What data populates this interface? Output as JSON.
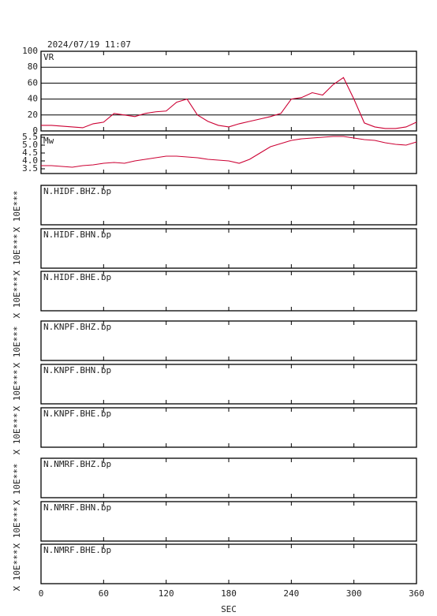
{
  "chart_data": [
    {
      "type": "line",
      "title": "2024/07/19 11:07",
      "label": "VR",
      "x": [
        0,
        10,
        20,
        30,
        40,
        50,
        60,
        70,
        80,
        90,
        100,
        110,
        120,
        130,
        140,
        150,
        160,
        170,
        180,
        190,
        200,
        210,
        220,
        230,
        240,
        250,
        260,
        270,
        280,
        290,
        300,
        310,
        320,
        330,
        340,
        350,
        360
      ],
      "values": [
        7,
        7,
        6,
        5,
        4,
        9,
        11,
        22,
        20,
        18,
        22,
        24,
        25,
        36,
        40,
        20,
        12,
        7,
        5,
        9,
        12,
        15,
        18,
        22,
        40,
        42,
        48,
        45,
        58,
        67,
        40,
        10,
        5,
        3,
        3,
        5,
        11
      ],
      "color": "#cc0033",
      "xlim": [
        0,
        360
      ],
      "xticks": [
        0,
        60,
        120,
        180,
        240,
        300,
        360
      ],
      "ylim": [
        0,
        100
      ],
      "yticks": [
        0,
        20,
        40,
        60,
        80,
        100
      ],
      "grid": true
    },
    {
      "type": "line",
      "label": "Mw",
      "x": [
        0,
        10,
        20,
        30,
        40,
        50,
        60,
        70,
        80,
        90,
        100,
        110,
        120,
        130,
        140,
        150,
        160,
        170,
        180,
        190,
        200,
        210,
        220,
        230,
        240,
        250,
        260,
        270,
        280,
        290,
        300,
        310,
        320,
        330,
        340,
        350,
        360
      ],
      "values": [
        3.7,
        3.7,
        3.65,
        3.6,
        3.7,
        3.75,
        3.85,
        3.9,
        3.85,
        4.0,
        4.1,
        4.2,
        4.3,
        4.3,
        4.25,
        4.2,
        4.1,
        4.05,
        4.0,
        3.85,
        4.1,
        4.5,
        4.9,
        5.1,
        5.3,
        5.4,
        5.45,
        5.5,
        5.55,
        5.55,
        5.45,
        5.35,
        5.3,
        5.15,
        5.05,
        5.0,
        5.2
      ],
      "color": "#cc0033",
      "xlim": [
        0,
        360
      ],
      "xticks": [
        0,
        60,
        120,
        180,
        240,
        300,
        360
      ],
      "ylim": [
        3.2,
        5.65
      ],
      "yticks": [
        3.5,
        {
          "value": 4,
          "label": "4.0"
        },
        4.5,
        {
          "value": 5,
          "label": "5.0"
        },
        5.5
      ],
      "grid": false
    },
    {
      "type": "line",
      "label": "N.HIDF.BHZ.bp",
      "ylabel": "X 10E***",
      "xlim": [
        0,
        360
      ],
      "xticks": [
        0,
        60,
        120,
        180,
        240,
        300,
        360
      ]
    },
    {
      "type": "line",
      "label": "N.HIDF.BHN.bp",
      "ylabel": "X 10E***",
      "xlim": [
        0,
        360
      ],
      "xticks": [
        0,
        60,
        120,
        180,
        240,
        300,
        360
      ]
    },
    {
      "type": "line",
      "label": "N.HIDF.BHE.bp",
      "ylabel": "X 10E***",
      "xlim": [
        0,
        360
      ],
      "xticks": [
        0,
        60,
        120,
        180,
        240,
        300,
        360
      ]
    },
    {
      "type": "line",
      "label": "N.KNPF.BHZ.bp",
      "ylabel": "X 10E***",
      "xlim": [
        0,
        360
      ],
      "xticks": [
        0,
        60,
        120,
        180,
        240,
        300,
        360
      ]
    },
    {
      "type": "line",
      "label": "N.KNPF.BHN.bp",
      "ylabel": "X 10E***",
      "xlim": [
        0,
        360
      ],
      "xticks": [
        0,
        60,
        120,
        180,
        240,
        300,
        360
      ]
    },
    {
      "type": "line",
      "label": "N.KNPF.BHE.bp",
      "ylabel": "X 10E***",
      "xlim": [
        0,
        360
      ],
      "xticks": [
        0,
        60,
        120,
        180,
        240,
        300,
        360
      ]
    },
    {
      "type": "line",
      "label": "N.NMRF.BHZ.bp",
      "ylabel": "X 10E***",
      "xlim": [
        0,
        360
      ],
      "xticks": [
        0,
        60,
        120,
        180,
        240,
        300,
        360
      ]
    },
    {
      "type": "line",
      "label": "N.NMRF.BHN.bp",
      "ylabel": "X 10E***",
      "xlim": [
        0,
        360
      ],
      "xticks": [
        0,
        60,
        120,
        180,
        240,
        300,
        360
      ]
    },
    {
      "type": "line",
      "label": "N.NMRF.BHE.bp",
      "ylabel": "X 10E***",
      "xlim": [
        0,
        360
      ],
      "xticks": [
        0,
        60,
        120,
        180,
        240,
        300,
        360
      ],
      "xlabel": "SEC"
    }
  ]
}
